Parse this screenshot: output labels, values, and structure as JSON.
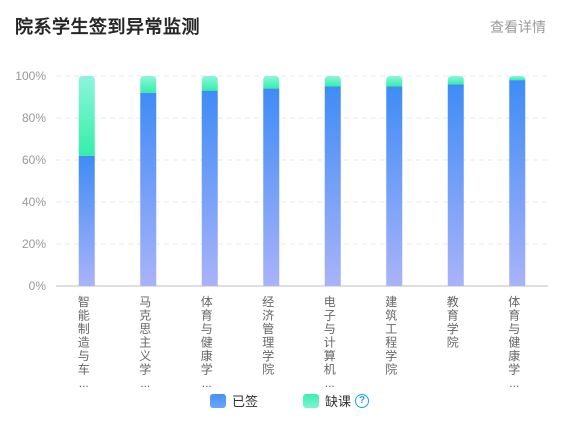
{
  "header": {
    "title": "院系学生签到异常监测",
    "detail_link": "查看详情"
  },
  "legend": {
    "signed_label": "已签",
    "missed_label": "缺课",
    "help_icon": "question-circle-icon"
  },
  "colors": {
    "signed_top": "#3f8cf6",
    "signed_bottom": "#a9b3f9",
    "missed_top": "#8ff4dd",
    "missed_bottom": "#32f0a8",
    "axis_text": "#999999",
    "grid": "#e8e8e8"
  },
  "chart_data": {
    "type": "bar",
    "stacked": true,
    "title": "",
    "xlabel": "",
    "ylabel": "",
    "ylim": [
      0,
      100
    ],
    "yticks": [
      "0%",
      "20%",
      "40%",
      "60%",
      "80%",
      "100%"
    ],
    "categories": [
      "智能制造与车…",
      "马克思主义学…",
      "体育与健康学…",
      "经济管理学院",
      "电子与计算机…",
      "建筑工程学院",
      "教育学院",
      "体育与健康学…"
    ],
    "series": [
      {
        "name": "已签",
        "values": [
          62,
          92,
          93,
          94,
          95,
          95,
          96,
          98
        ]
      },
      {
        "name": "缺课",
        "values": [
          38,
          8,
          7,
          6,
          5,
          5,
          4,
          2
        ]
      }
    ],
    "grid": true,
    "legend_position": "bottom"
  }
}
